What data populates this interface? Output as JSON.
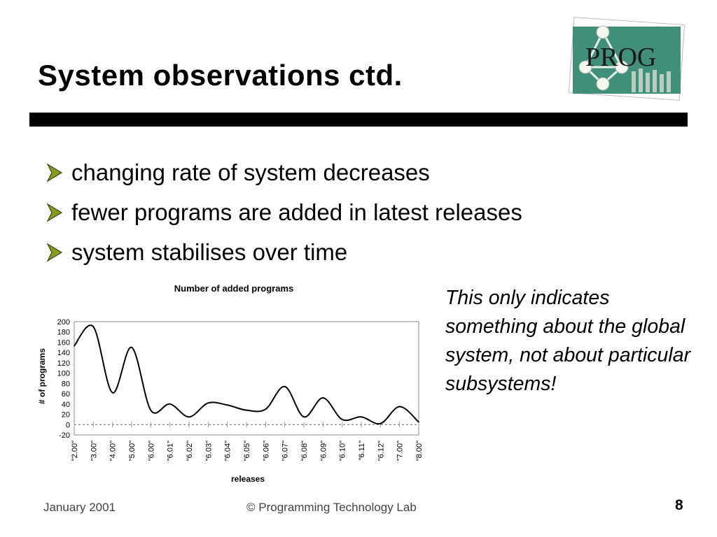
{
  "slide": {
    "title": "System observations ctd.",
    "bullets": [
      "changing rate of system decreases",
      "fewer programs are added in latest releases",
      "system stabilises over time"
    ],
    "note": "This only indicates something about the global system, not about particular subsystems!",
    "logo_text": "PROG",
    "footer_left": "January 2001",
    "footer_center": "© Programming Technology Lab",
    "page_number": "8",
    "bullet_color": "#8a9a1e",
    "logo_bg": "#3f8f7a"
  },
  "chart_data": {
    "type": "line",
    "title": "Number of added programs",
    "xlabel": "releases",
    "ylabel": "# of programs",
    "categories": [
      "\"2.00\"",
      "\"3.00\"",
      "\"4.00\"",
      "\"5.00\"",
      "\"6.00\"",
      "\"6.01\"",
      "\"6.02\"",
      "\"6.03\"",
      "\"6.04\"",
      "\"6.05\"",
      "\"6.06\"",
      "\"6.07\"",
      "\"6.08\"",
      "\"6.09\"",
      "\"6.10\"",
      "\"6.11\"",
      "\"6.12\"",
      "\"7.00\"",
      "\"8.00\""
    ],
    "values": [
      153,
      190,
      62,
      150,
      28,
      40,
      15,
      42,
      38,
      28,
      30,
      74,
      15,
      52,
      10,
      15,
      2,
      35,
      5
    ],
    "y_ticks": [
      200,
      180,
      160,
      140,
      120,
      100,
      80,
      60,
      40,
      20,
      0,
      -20
    ],
    "ylim": [
      -20,
      200
    ],
    "grid": false,
    "legend": "none"
  }
}
